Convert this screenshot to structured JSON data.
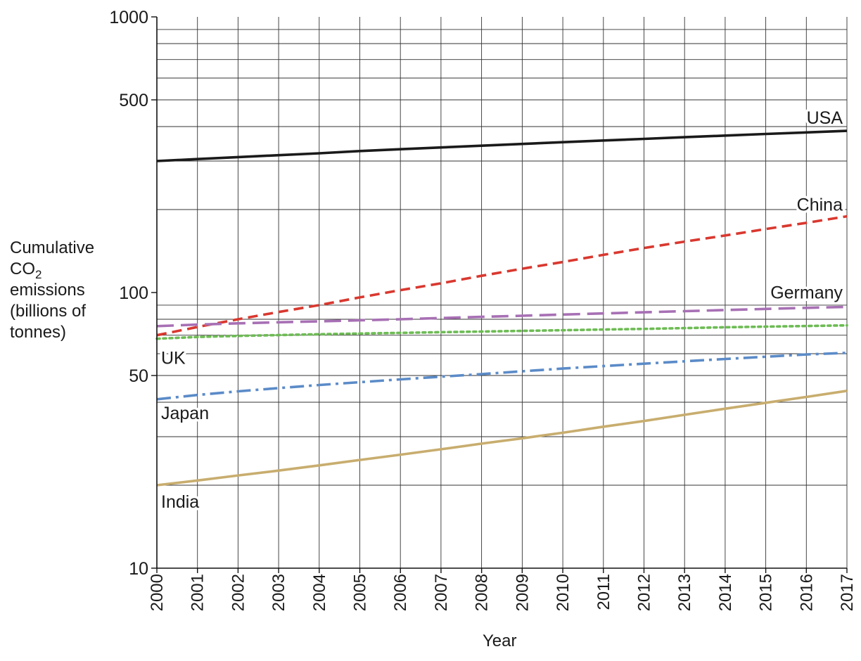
{
  "chart_data": {
    "type": "line",
    "y_scale": "log",
    "ylim": [
      10,
      1000
    ],
    "xlim": [
      2000,
      2017
    ],
    "grid": true,
    "xlabel": "Year",
    "ylabel_lines": [
      "Cumulative",
      "CO",
      "emissions",
      "(billions of",
      "tonnes)"
    ],
    "ylabel_subscript": "2",
    "y_ticks": [
      10,
      50,
      100,
      500,
      1000
    ],
    "y_tick_labels": [
      "10",
      "50",
      "100",
      "500",
      "1000"
    ],
    "x": [
      2000,
      2001,
      2002,
      2003,
      2004,
      2005,
      2006,
      2007,
      2008,
      2009,
      2010,
      2011,
      2012,
      2013,
      2014,
      2015,
      2016,
      2017
    ],
    "x_tick_labels": [
      "2000",
      "2001",
      "2002",
      "2003",
      "2004",
      "2005",
      "2006",
      "2007",
      "2008",
      "2009",
      "2010",
      "2011",
      "2012",
      "2013",
      "2014",
      "2015",
      "2016",
      "2017"
    ],
    "series": [
      {
        "name": "USA",
        "label": "USA",
        "color": "#1a1a1a",
        "dash": "solid",
        "values": [
          300,
          305,
          310,
          315,
          320,
          326,
          331,
          336,
          341,
          346,
          351,
          356,
          361,
          366,
          371,
          376,
          381,
          386
        ]
      },
      {
        "name": "China",
        "label": "China",
        "color": "#d9382f",
        "dash": "dashed",
        "values": [
          70,
          75,
          80,
          85,
          90,
          96,
          102,
          108,
          115,
          122,
          129,
          137,
          145,
          153,
          161,
          170,
          179,
          189
        ]
      },
      {
        "name": "Germany",
        "label": "Germany",
        "color": "#a770b4",
        "dash": "longdash",
        "values": [
          75.5,
          76.5,
          77.3,
          78,
          78.6,
          79.3,
          80,
          80.8,
          81.6,
          82.4,
          83.2,
          84,
          84.8,
          85.6,
          86.4,
          87.2,
          88,
          88.7
        ]
      },
      {
        "name": "UK",
        "label": "UK",
        "color": "#6dbb54",
        "dash": "dotted",
        "values": [
          68,
          69,
          69.6,
          70.1,
          70.6,
          71,
          71.4,
          71.8,
          72.2,
          72.6,
          73,
          73.4,
          73.8,
          74.3,
          74.8,
          75.2,
          75.6,
          76
        ]
      },
      {
        "name": "Japan",
        "label": "Japan",
        "color": "#5b8bc8",
        "dash": "dashdot",
        "values": [
          41,
          42.5,
          43.8,
          45,
          46.2,
          47.3,
          48.4,
          49.5,
          50.6,
          51.8,
          53,
          54.1,
          55.2,
          56.3,
          57.4,
          58.5,
          59.6,
          60.4
        ]
      },
      {
        "name": "India",
        "label": "India",
        "color": "#c8ad6e",
        "dash": "solid",
        "values": [
          20,
          20.8,
          21.7,
          22.6,
          23.6,
          24.7,
          25.8,
          27,
          28.3,
          29.6,
          31,
          32.6,
          34.2,
          36,
          37.9,
          39.8,
          41.8,
          44
        ]
      }
    ]
  }
}
